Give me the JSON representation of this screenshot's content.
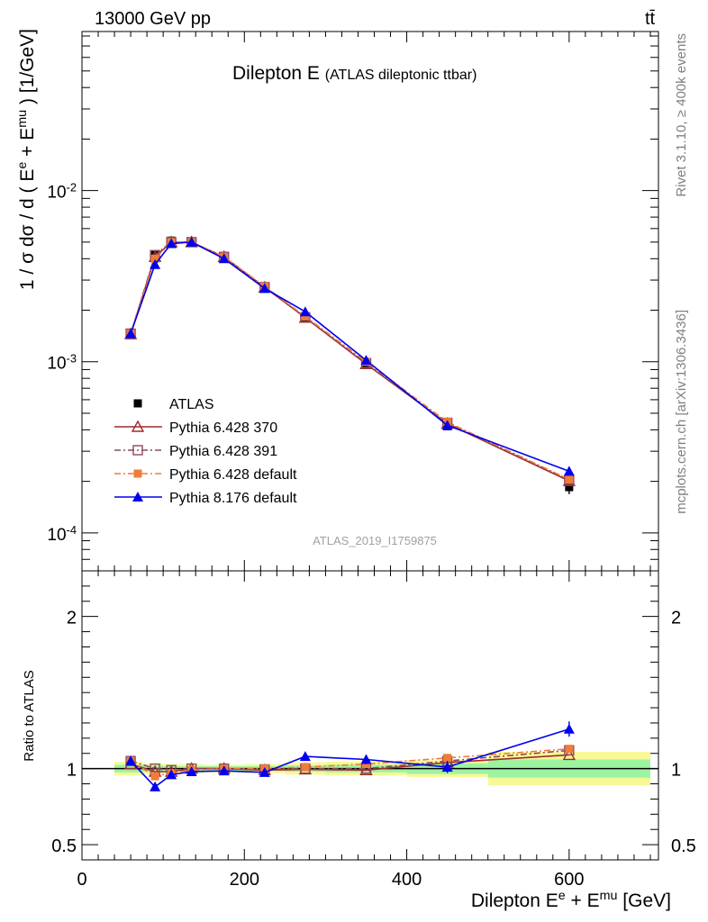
{
  "header": {
    "left": "13000 GeV pp",
    "right": "tt̄",
    "right_side_top": "Rivet 3.1.10, ≥ 400k events",
    "right_side_bottom": "mcplots.cern.ch [arXiv:1306.3436]"
  },
  "chart_data": [
    {
      "type": "line",
      "title": "Dilepton E",
      "subtitle": "(ATLAS dileptonic ttbar)",
      "watermark": "ATLAS_2019_I1759875",
      "ylabel": "1 / σ dσ / d ( E^e + E^mu ) [1/GeV]",
      "yscale": "log",
      "ylim": [
        6e-05,
        0.085
      ],
      "xlim": [
        0,
        710
      ],
      "ytick_labels": [
        "10^-4",
        "10^-3",
        "10^-2"
      ],
      "legend_position": "middle-left",
      "x": [
        60,
        90,
        110,
        135,
        175,
        225,
        275,
        350,
        450,
        600
      ],
      "series": [
        {
          "name": "ATLAS",
          "color": "#000000",
          "marker": "filled-square",
          "line": "none",
          "values": [
            0.00143,
            0.0042,
            0.0051,
            0.005,
            0.0041,
            0.00275,
            0.00182,
            0.00098,
            0.00042,
            0.000185
          ],
          "band_rel_errors": [
            0.04,
            0.03,
            0.02,
            0.02,
            0.02,
            0.02,
            0.03,
            0.04,
            0.05,
            0.09
          ]
        },
        {
          "name": "Pythia 6.428 370",
          "color": "#9e2a2b",
          "marker": "open-triangle",
          "line": "solid",
          "values": [
            0.00145,
            0.0041,
            0.005,
            0.005,
            0.0041,
            0.00272,
            0.00181,
            0.00097,
            0.000435,
            0.000201
          ]
        },
        {
          "name": "Pythia 6.428 391",
          "color": "#8a4a5f",
          "marker": "open-square",
          "line": "dash-dot",
          "values": [
            0.00146,
            0.0042,
            0.005,
            0.005,
            0.0041,
            0.00273,
            0.00182,
            0.00098,
            0.00044,
            0.000204
          ]
        },
        {
          "name": "Pythia 6.428 default",
          "color": "#f07c3a",
          "marker": "filled-square",
          "line": "dash-dot",
          "values": [
            0.00146,
            0.004,
            0.005,
            0.005,
            0.0041,
            0.00275,
            0.00184,
            0.001,
            0.000445,
            0.000205
          ]
        },
        {
          "name": "Pythia 8.176 default",
          "color": "#0000ee",
          "marker": "filled-triangle",
          "line": "solid",
          "values": [
            0.00146,
            0.0037,
            0.0049,
            0.005,
            0.004,
            0.00268,
            0.00196,
            0.00102,
            0.000425,
            0.000229
          ]
        }
      ]
    },
    {
      "type": "line",
      "ylabel": "Ratio to ATLAS",
      "xlabel": "Dilepton E^e + E^mu [GeV]",
      "xlim": [
        0,
        710
      ],
      "ylim": [
        0.4,
        2.3
      ],
      "ytick_labels": [
        "0.5",
        "1",
        "2"
      ],
      "xtick_labels": [
        "0",
        "200",
        "400",
        "600"
      ],
      "reference_line": 1.0,
      "bins": [
        [
          40,
          75
        ],
        [
          75,
          100
        ],
        [
          100,
          120
        ],
        [
          120,
          150
        ],
        [
          150,
          200
        ],
        [
          200,
          250
        ],
        [
          250,
          300
        ],
        [
          300,
          400
        ],
        [
          400,
          500
        ],
        [
          500,
          700
        ]
      ],
      "band_inner": [
        0.025,
        0.02,
        0.015,
        0.015,
        0.015,
        0.015,
        0.02,
        0.025,
        0.035,
        0.06
      ],
      "band_outer": [
        0.045,
        0.035,
        0.03,
        0.03,
        0.025,
        0.03,
        0.04,
        0.045,
        0.055,
        0.11
      ],
      "x": [
        60,
        90,
        110,
        135,
        175,
        225,
        275,
        350,
        450,
        600
      ],
      "series": [
        {
          "name": "Pythia 6.428 370",
          "values": [
            1.03,
            0.98,
            0.98,
            1.0,
            1.0,
            0.99,
            0.995,
            0.99,
            1.04,
            1.09
          ]
        },
        {
          "name": "Pythia 6.428 391",
          "values": [
            1.05,
            1.0,
            0.99,
            1.0,
            1.0,
            0.995,
            1.0,
            1.0,
            1.05,
            1.12
          ]
        },
        {
          "name": "Pythia 6.428 default",
          "values": [
            1.05,
            0.95,
            0.97,
            0.99,
            1.0,
            1.0,
            1.01,
            1.03,
            1.07,
            1.13
          ]
        },
        {
          "name": "Pythia 8.176 default",
          "values": [
            1.05,
            0.88,
            0.96,
            0.98,
            0.985,
            0.975,
            1.08,
            1.06,
            1.01,
            1.26
          ],
          "errors": [
            0.03,
            0.03,
            0.02,
            0.015,
            0.015,
            0.02,
            0.025,
            0.03,
            0.04,
            0.05
          ]
        }
      ]
    }
  ]
}
